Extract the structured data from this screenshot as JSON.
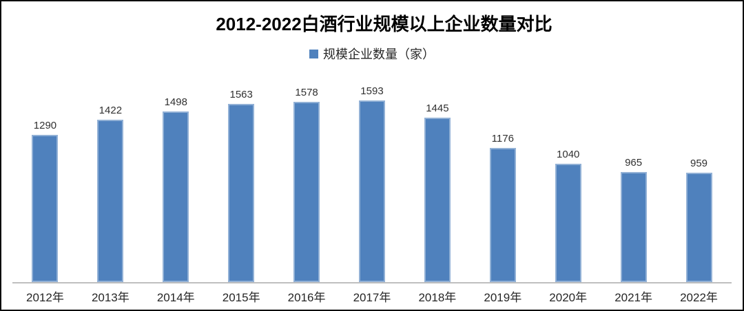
{
  "title": "2012-2022白酒行业规模以上企业数量对比",
  "legend": {
    "label": "规模企业数量（家）",
    "swatch_color": "#4F81BD"
  },
  "colors": {
    "bar": "#4F81BD",
    "axis_line": "#BFBFBF",
    "label_text": "#303030",
    "tick_text": "#262626",
    "frame_border": "#0a0a0a"
  },
  "chart_data": {
    "type": "bar",
    "title": "2012-2022白酒行业规模以上企业数量对比",
    "categories": [
      "2012年",
      "2013年",
      "2014年",
      "2015年",
      "2016年",
      "2017年",
      "2018年",
      "2019年",
      "2020年",
      "2021年",
      "2022年"
    ],
    "series": [
      {
        "name": "规模企业数量（家）",
        "values": [
          1290,
          1422,
          1498,
          1563,
          1578,
          1593,
          1445,
          1176,
          1040,
          965,
          959
        ]
      }
    ],
    "xlabel": "",
    "ylabel": "",
    "ylim": [
      0,
      1593
    ],
    "grid": false,
    "legend_position": "top",
    "data_labels_shown": true,
    "bar_color": "#4F81BD"
  }
}
